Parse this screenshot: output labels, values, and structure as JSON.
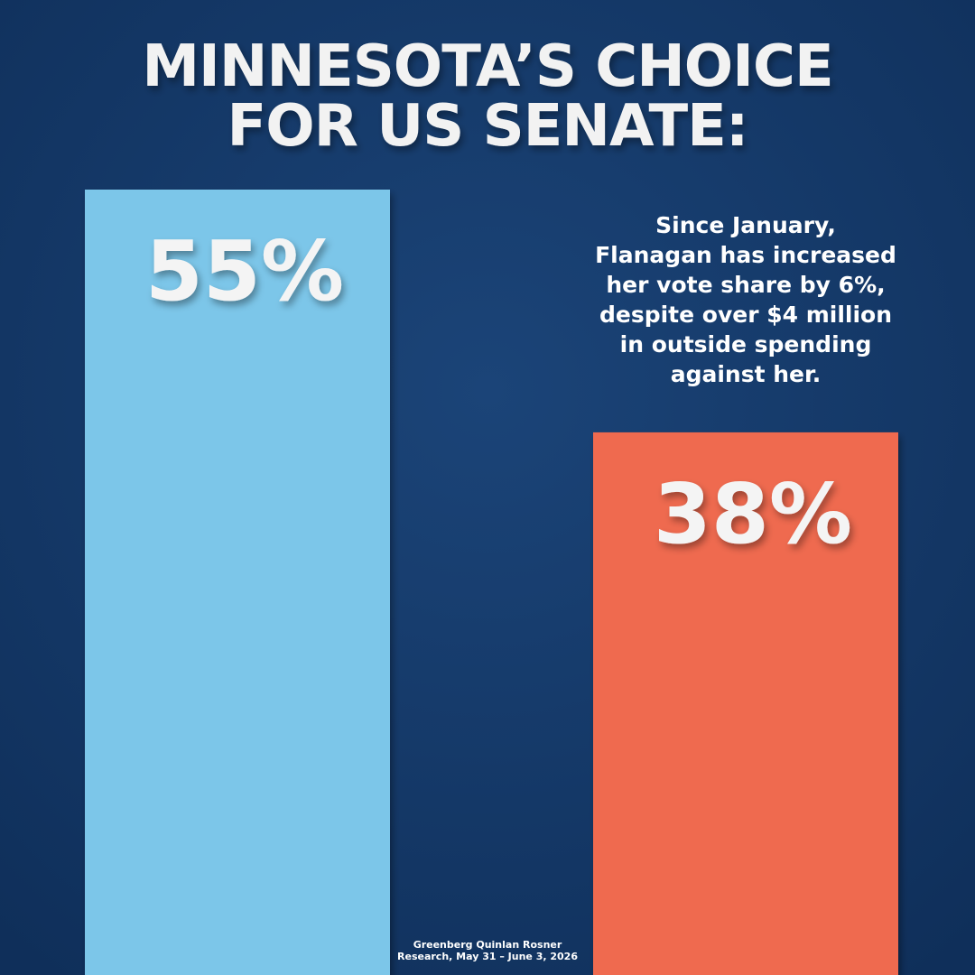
{
  "chart_data": {
    "type": "bar",
    "title": [
      "MINNESOTA’S CHOICE",
      "FOR US SENATE:"
    ],
    "categories": [
      null,
      null
    ],
    "values": [
      55,
      38
    ],
    "value_labels": [
      "55%",
      "38%"
    ],
    "colors": [
      "#7cc6e9",
      "#ef6a4f"
    ],
    "annotation": [
      "Since January,",
      "Flanagan has increased",
      "her vote share by 6%,",
      "despite over $4 million",
      "in outside spending",
      "against her."
    ],
    "source": [
      "Greenberg Quinlan Rosner",
      "Research, May 31 – June 3, 2026"
    ]
  }
}
